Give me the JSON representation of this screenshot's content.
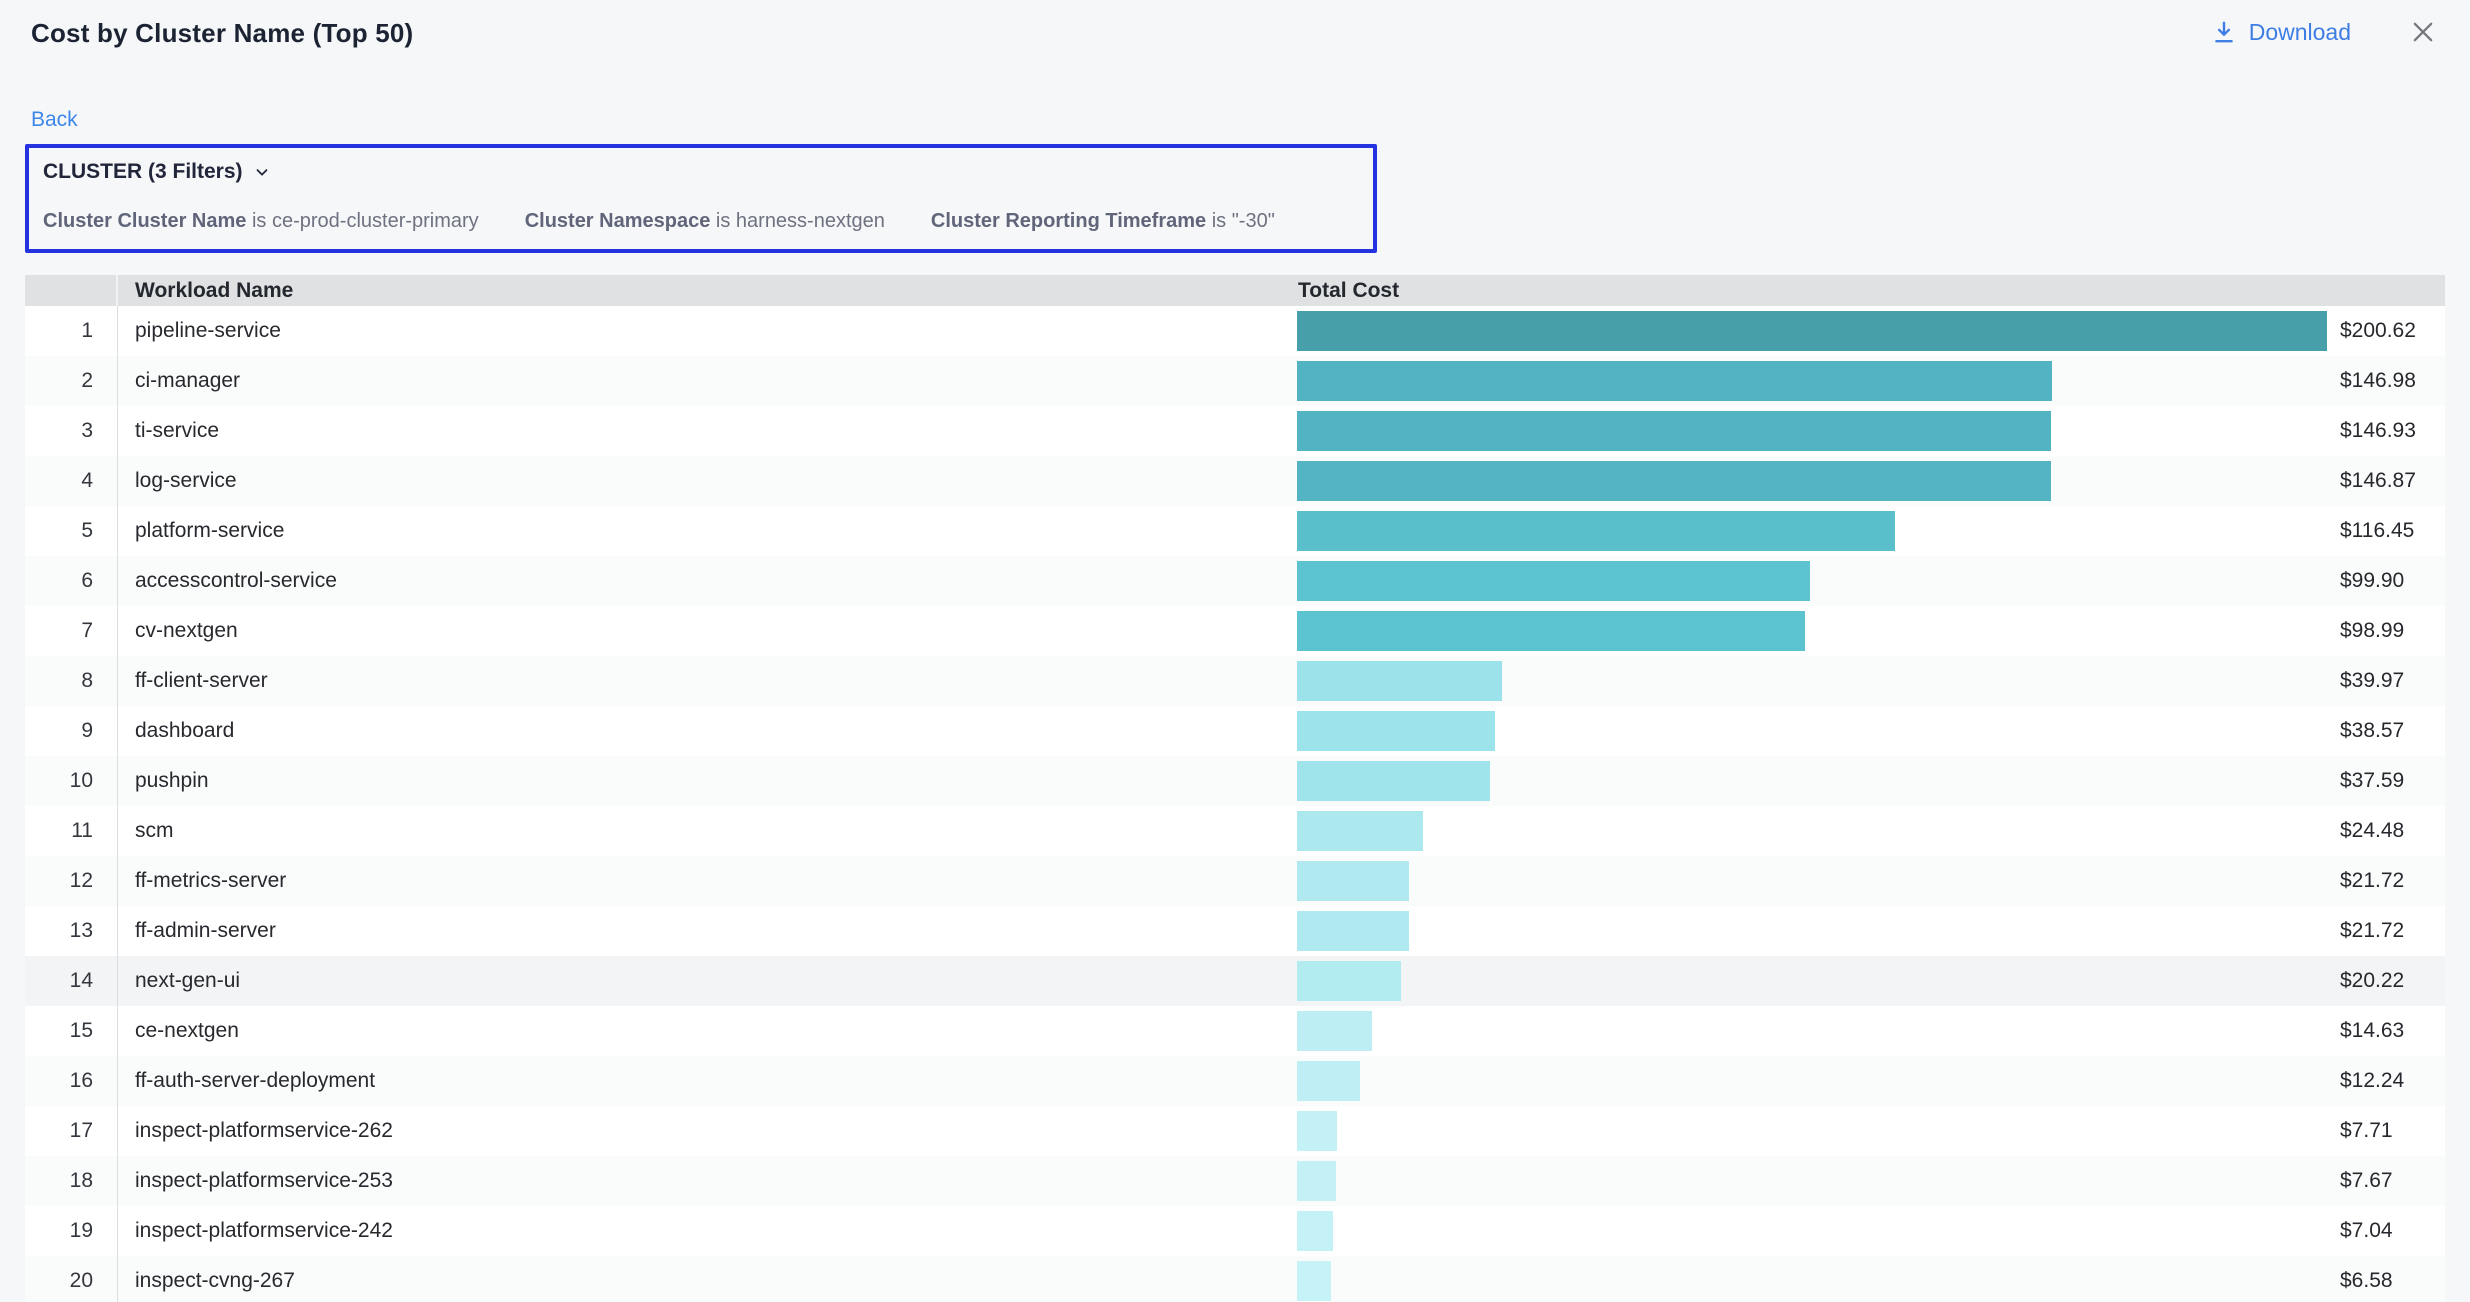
{
  "header": {
    "title": "Cost by Cluster Name (Top 50)",
    "download_label": "Download",
    "accent_blue": "#3d7de4",
    "close_color": "#75787c"
  },
  "nav": {
    "back_label": "Back"
  },
  "filter_panel": {
    "group_label": "CLUSTER (3 Filters)",
    "border_color": "#2433df",
    "filters": [
      {
        "field": "Cluster Cluster Name",
        "condition": "is ce-prod-cluster-primary"
      },
      {
        "field": "Cluster Namespace",
        "condition": "is harness-nextgen"
      },
      {
        "field": "Cluster Reporting Timeframe",
        "condition": "is \"-30\""
      }
    ]
  },
  "table": {
    "columns": {
      "rank": "",
      "name": "Workload Name",
      "cost": "Total Cost"
    }
  },
  "chart_data": {
    "type": "bar",
    "orientation": "horizontal",
    "title": "Cost by Cluster Name (Top 50)",
    "xlabel": "Total Cost",
    "ylabel": "Workload Name",
    "max_value": 200.62,
    "xlim": [
      0,
      200.62
    ],
    "grid": false,
    "legend": false,
    "categories": [
      "pipeline-service",
      "ci-manager",
      "ti-service",
      "log-service",
      "platform-service",
      "accesscontrol-service",
      "cv-nextgen",
      "ff-client-server",
      "dashboard",
      "pushpin",
      "scm",
      "ff-metrics-server",
      "ff-admin-server",
      "next-gen-ui",
      "ce-nextgen",
      "ff-auth-server-deployment",
      "inspect-platformservice-262",
      "inspect-platformservice-253",
      "inspect-platformservice-242",
      "inspect-cvng-267"
    ],
    "values": [
      200.62,
      146.98,
      146.93,
      146.87,
      116.45,
      99.9,
      98.99,
      39.97,
      38.57,
      37.59,
      24.48,
      21.72,
      21.72,
      20.22,
      14.63,
      12.24,
      7.71,
      7.67,
      7.04,
      6.58
    ],
    "rows": [
      {
        "rank": 1,
        "name": "pipeline-service",
        "value": 200.62,
        "label": "$200.62",
        "color": "#47a0a9"
      },
      {
        "rank": 2,
        "name": "ci-manager",
        "value": 146.98,
        "label": "$146.98",
        "color": "#52b4c2"
      },
      {
        "rank": 3,
        "name": "ti-service",
        "value": 146.93,
        "label": "$146.93",
        "color": "#52b4c2"
      },
      {
        "rank": 4,
        "name": "log-service",
        "value": 146.87,
        "label": "$146.87",
        "color": "#53b5c3"
      },
      {
        "rank": 5,
        "name": "platform-service",
        "value": 116.45,
        "label": "$116.45",
        "color": "#58bfcb"
      },
      {
        "rank": 6,
        "name": "accesscontrol-service",
        "value": 99.9,
        "label": "$99.90",
        "color": "#5bc4d0"
      },
      {
        "rank": 7,
        "name": "cv-nextgen",
        "value": 98.99,
        "label": "$98.99",
        "color": "#5bc4d0"
      },
      {
        "rank": 8,
        "name": "ff-client-server",
        "value": 39.97,
        "label": "$39.97",
        "color": "#9ce2ea"
      },
      {
        "rank": 9,
        "name": "dashboard",
        "value": 38.57,
        "label": "$38.57",
        "color": "#9de3eb"
      },
      {
        "rank": 10,
        "name": "pushpin",
        "value": 37.59,
        "label": "$37.59",
        "color": "#9fe4eb"
      },
      {
        "rank": 11,
        "name": "scm",
        "value": 24.48,
        "label": "$24.48",
        "color": "#ace9ef"
      },
      {
        "rank": 12,
        "name": "ff-metrics-server",
        "value": 21.72,
        "label": "$21.72",
        "color": "#b0eaf0"
      },
      {
        "rank": 13,
        "name": "ff-admin-server",
        "value": 21.72,
        "label": "$21.72",
        "color": "#b0eaf0"
      },
      {
        "rank": 14,
        "name": "next-gen-ui",
        "value": 20.22,
        "label": "$20.22",
        "color": "#b2ebf0",
        "highlighted": true
      },
      {
        "rank": 15,
        "name": "ce-nextgen",
        "value": 14.63,
        "label": "$14.63",
        "color": "#bceef4"
      },
      {
        "rank": 16,
        "name": "ff-auth-server-deployment",
        "value": 12.24,
        "label": "$12.24",
        "color": "#bfeff5"
      },
      {
        "rank": 17,
        "name": "inspect-platformservice-262",
        "value": 7.71,
        "label": "$7.71",
        "color": "#c3f1f6"
      },
      {
        "rank": 18,
        "name": "inspect-platformservice-253",
        "value": 7.67,
        "label": "$7.67",
        "color": "#c3f1f6"
      },
      {
        "rank": 19,
        "name": "inspect-platformservice-242",
        "value": 7.04,
        "label": "$7.04",
        "color": "#c4f2f7"
      },
      {
        "rank": 20,
        "name": "inspect-cvng-267",
        "value": 6.58,
        "label": "$6.58",
        "color": "#c6f3f7"
      }
    ]
  }
}
